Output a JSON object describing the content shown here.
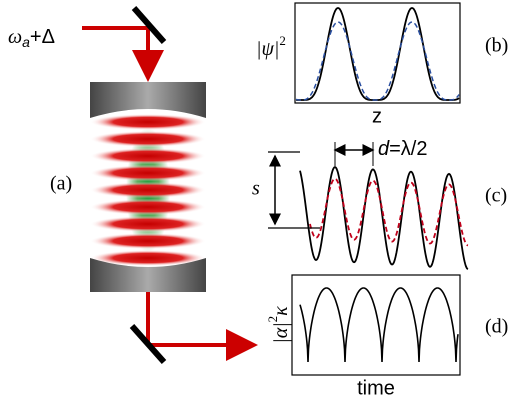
{
  "laser": {
    "label_main": "ω",
    "label_sub": "a",
    "label_tail": "+Δ"
  },
  "panels": [
    {
      "tag": "(a)"
    },
    {
      "tag": "(b)",
      "ylabel_main": "|ψ|",
      "ylabel_sup": "2",
      "xlabel": "z"
    },
    {
      "tag": "(c)",
      "height_label": "s",
      "spacing_label_main": "d",
      "spacing_label_tail": "=λ/2"
    },
    {
      "tag": "(d)",
      "ylabel_main": "|α|",
      "ylabel_sup": "2",
      "ylabel_tail": "κ",
      "xlabel": "time"
    }
  ]
}
